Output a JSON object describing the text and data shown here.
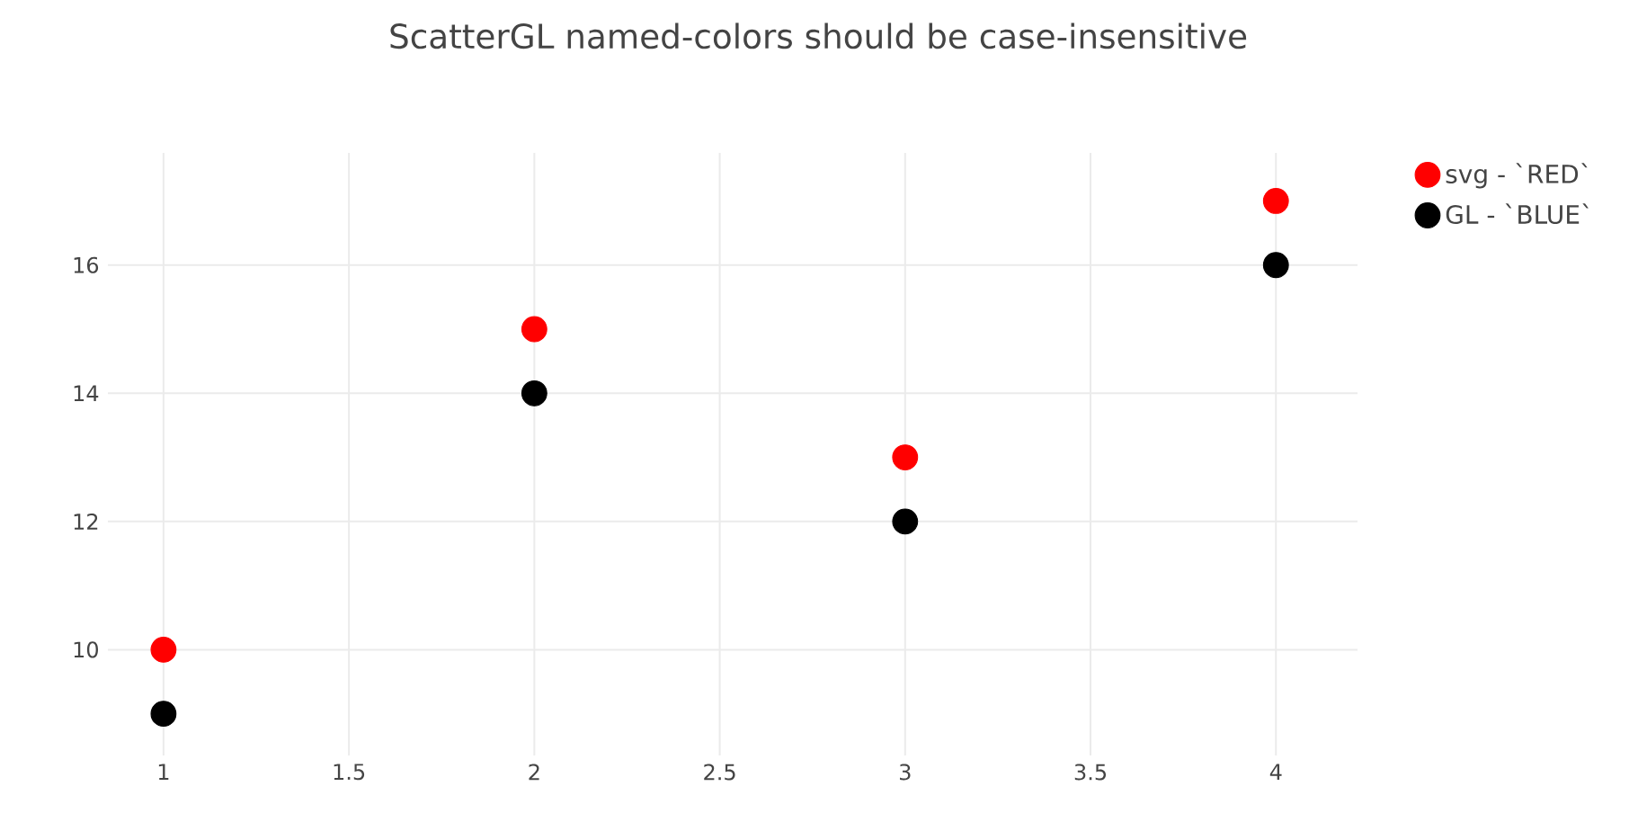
{
  "chart_data": {
    "type": "scatter",
    "title": "ScatterGL named-colors should be case-insensitive",
    "x": [
      1,
      2,
      3,
      4
    ],
    "series": [
      {
        "name": "svg - `RED`",
        "color": "#ff0000",
        "values": [
          10,
          15,
          13,
          17
        ]
      },
      {
        "name": "GL - `BLUE`",
        "color": "#000000",
        "values": [
          9,
          14,
          12,
          16
        ]
      }
    ],
    "xlim": [
      0.85,
      4.22
    ],
    "ylim": [
      8.35,
      17.75
    ],
    "xticks": [
      1,
      1.5,
      2,
      2.5,
      3,
      3.5,
      4
    ],
    "yticks": [
      10,
      12,
      14,
      16
    ],
    "grid": true,
    "legend": "top right"
  }
}
